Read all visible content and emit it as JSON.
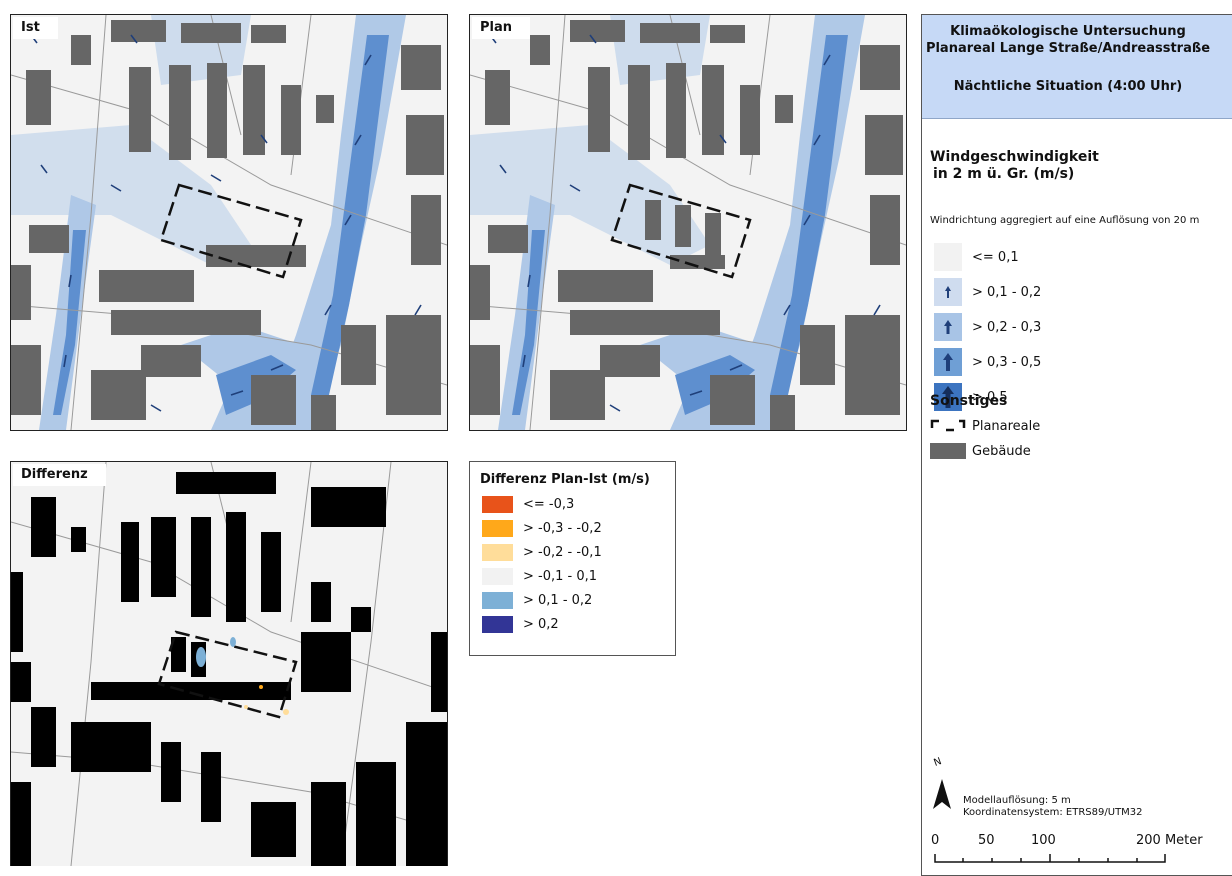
{
  "maps": {
    "ist_label": "Ist",
    "plan_label": "Plan",
    "diff_label": "Differenz"
  },
  "diff_legend": {
    "title": "Differenz Plan-Ist (m/s)",
    "items": [
      {
        "label": "<= -0,3",
        "color": "#e8531a"
      },
      {
        "label": "> -0,3 - -0,2",
        "color": "#ffa81a"
      },
      {
        "label": "> -0,2 - -0,1",
        "color": "#ffdd9a"
      },
      {
        "label": "> -0,1 - 0,1",
        "color": "#f2f2f2"
      },
      {
        "label": "> 0,1 - 0,2",
        "color": "#7db0d6"
      },
      {
        "label": "> 0,2",
        "color": "#323596"
      }
    ]
  },
  "side": {
    "title_line1": "Klimaökologische Untersuchung",
    "title_line2": "Planareal Lange Straße/Andreasstraße",
    "title_line3": "Nächtliche Situation (4:00 Uhr)",
    "header_color": "#c6d9f6",
    "wind_title_line1": "Windgeschwindigkeit",
    "wind_title_line2": "in 2 m ü. Gr. (m/s)",
    "wind_note": "Windrichtung aggregiert auf eine Auflösung von 20 m",
    "wind_items": [
      {
        "label": "<= 0,1",
        "color": "#f2f2f2",
        "arrow": "none"
      },
      {
        "label": "> 0,1 - 0,2",
        "color": "#cfdcef",
        "arrow": "small"
      },
      {
        "label": "> 0,2 - 0,3",
        "color": "#a8c4e6",
        "arrow": "medium"
      },
      {
        "label": "> 0,3 - 0,5",
        "color": "#6f9fd5",
        "arrow": "large"
      },
      {
        "label": "> 0,5",
        "color": "#3c74c0",
        "arrow": "xlarge"
      }
    ],
    "other_title": "Sonstiges",
    "plan_area_label": "Planareale",
    "building_label": "Gebäude",
    "building_color": "#666666",
    "north_label": "N",
    "resolution": "Modellauflösung: 5 m",
    "crs": "Koordinatensystem: ETRS89/UTM32",
    "scale": {
      "ticks": [
        "0",
        "50",
        "100",
        "200 Meter"
      ]
    }
  }
}
